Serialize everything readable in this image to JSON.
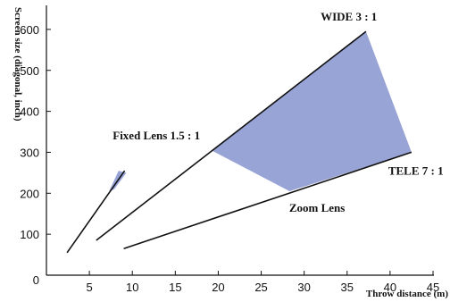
{
  "chart_data": {
    "type": "line",
    "title": "",
    "xlabel": "Throw distance (m)",
    "ylabel": "Screen size (diagonal, inch)",
    "xlim": [
      0,
      45
    ],
    "ylim": [
      0,
      650
    ],
    "x_ticks": [
      "0",
      "5",
      "10",
      "15",
      "20",
      "25",
      "30",
      "35",
      "40",
      "45"
    ],
    "y_ticks": [
      "100",
      "200",
      "300",
      "400",
      "500",
      "600"
    ],
    "grid": false,
    "legend": "none",
    "colors": {
      "fill": "#98a3d6",
      "line": "#111111"
    },
    "series": [
      {
        "name": "Fixed Lens 1.5 : 1",
        "x": [
          2.4,
          9.1
        ],
        "y": [
          55,
          255
        ]
      },
      {
        "name": "WIDE 3 : 1",
        "x": [
          5.8,
          37.2
        ],
        "y": [
          85,
          595
        ]
      },
      {
        "name": "TELE 7 : 1",
        "x": [
          9,
          42.5
        ],
        "y": [
          65,
          300
        ]
      }
    ],
    "regions": [
      {
        "name": "Fixed Lens 1.5 : 1",
        "points": [
          [
            7.3,
            205
          ],
          [
            8.4,
            255
          ],
          [
            9.3,
            250
          ],
          [
            7.9,
            210
          ]
        ]
      },
      {
        "name": "Zoom Lens",
        "points": [
          [
            19.2,
            305
          ],
          [
            37.2,
            595
          ],
          [
            42.5,
            300
          ],
          [
            28.3,
            205
          ]
        ]
      }
    ],
    "annotations": [
      {
        "text": "WIDE 3 : 1",
        "x": 35.2,
        "y": 622
      },
      {
        "text": "Fixed Lens 1.5 : 1",
        "x": 12.8,
        "y": 332
      },
      {
        "text": "TELE 7 : 1",
        "x": 43,
        "y": 245
      },
      {
        "text": "Zoom Lens",
        "x": 31.5,
        "y": 155
      }
    ]
  }
}
